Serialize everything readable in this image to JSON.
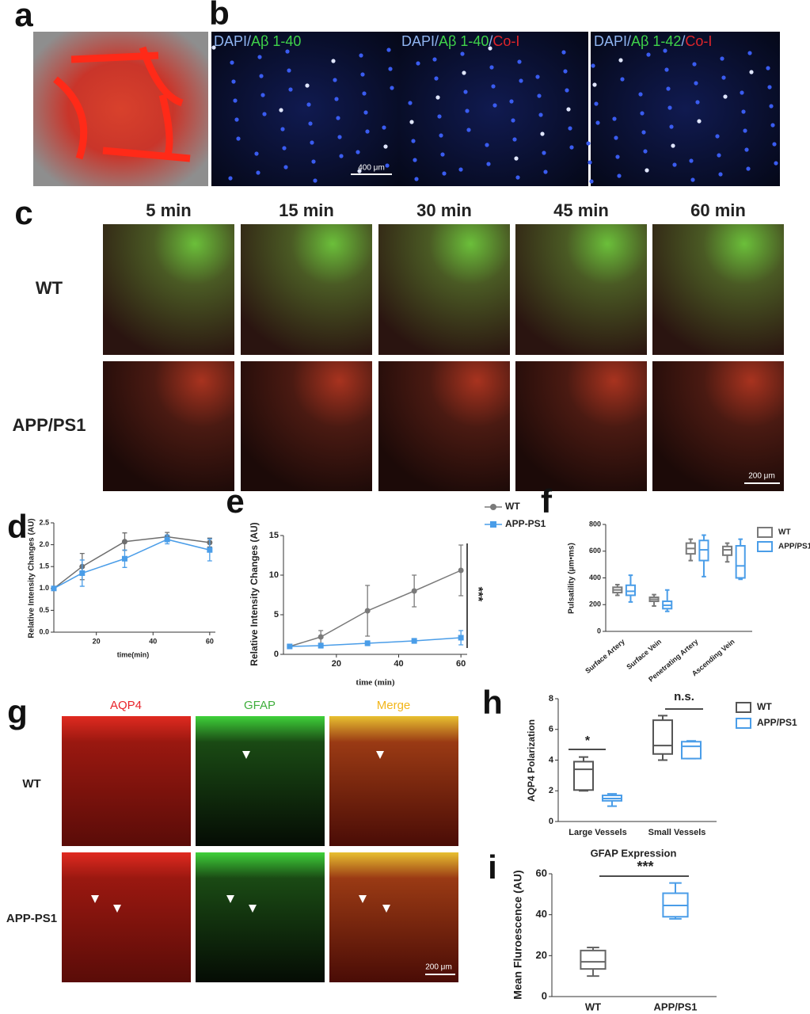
{
  "figure": {
    "panels": [
      "a",
      "b",
      "c",
      "d",
      "e",
      "f",
      "g",
      "h",
      "i"
    ],
    "b_labels": [
      [
        {
          "text": "DAPI/",
          "color": "#8fb4f0"
        },
        {
          "text": "Aβ 1-40",
          "color": "#3fd34a"
        }
      ],
      [
        {
          "text": "DAPI/",
          "color": "#8fb4f0"
        },
        {
          "text": "Aβ 1-40",
          "color": "#3fd34a"
        },
        {
          "text": "/",
          "color": "#8fb4f0"
        },
        {
          "text": "Co-I",
          "color": "#e0242b"
        }
      ],
      [
        {
          "text": "DAPI/",
          "color": "#8fb4f0"
        },
        {
          "text": "Aβ 1-42",
          "color": "#3fd34a"
        },
        {
          "text": "/",
          "color": "#8fb4f0"
        },
        {
          "text": "Co-I",
          "color": "#e0242b"
        }
      ]
    ],
    "b_scale": "400 μm",
    "c": {
      "times": [
        "5 min",
        "15 min",
        "30 min",
        "45 min",
        "60 min"
      ],
      "rows": [
        "WT",
        "APP/PS1"
      ],
      "scale": "200 μm"
    },
    "g": {
      "columns": [
        {
          "text": "AQP4",
          "color": "#e8232a"
        },
        {
          "text": "GFAP",
          "color": "#3fae3c"
        },
        {
          "text": "Merge",
          "color": "#f2b61b"
        }
      ],
      "rows": [
        "WT",
        "APP-PS1"
      ],
      "scale": "200 μm"
    }
  },
  "chart_data": [
    {
      "type": "line",
      "x_label": "time(min)",
      "y_label": "Relative Intensity Changes (AU)",
      "xlim": [
        5,
        62
      ],
      "xticks": [
        20,
        40,
        60
      ],
      "ylim": [
        0,
        2.5
      ],
      "yticks": [
        {
          "value": 0,
          "label": "0.0"
        },
        0.5,
        {
          "value": 1,
          "label": "1.0"
        },
        1.5,
        {
          "value": 2,
          "label": "2.0"
        },
        2.5
      ],
      "x": [
        5,
        15,
        30,
        45,
        60
      ],
      "series": [
        {
          "name": "WT",
          "color": "#6e6e6e",
          "marker": "circle",
          "values": [
            1,
            1.5,
            2.07,
            2.18,
            2.05
          ],
          "errors": [
            0,
            0.3,
            0.2,
            0.1,
            0.1
          ]
        },
        {
          "name": "APP/PS1",
          "color": "#4a9de8",
          "marker": "square",
          "values": [
            1,
            1.35,
            1.68,
            2.12,
            1.88
          ],
          "errors": [
            0,
            0.3,
            0.2,
            0.1,
            0.25
          ]
        }
      ]
    },
    {
      "type": "line",
      "x_label": "time (min)",
      "y_label": "Relative Intensity Changes (AU)",
      "xlim": [
        3,
        62
      ],
      "xticks": [
        20,
        40,
        60
      ],
      "ylim": [
        0,
        15
      ],
      "yticks": [
        0,
        5,
        10,
        15
      ],
      "x": [
        5,
        15,
        30,
        45,
        60
      ],
      "legend": "right",
      "annotations": [
        "***"
      ],
      "series": [
        {
          "name": "WT",
          "color": "#7a7a7a",
          "marker": "circle",
          "values": [
            1,
            2.2,
            5.5,
            8,
            10.6
          ],
          "errors": [
            0,
            0.8,
            3.2,
            2,
            3.2
          ]
        },
        {
          "name": "APP-PS1",
          "color": "#4a9de8",
          "marker": "square",
          "values": [
            1,
            1.1,
            1.4,
            1.7,
            2.1
          ],
          "errors": [
            0,
            0.3,
            0.3,
            0.3,
            0.9
          ]
        }
      ]
    },
    {
      "type": "box",
      "y_label": "Pulsatility (μm•ms)",
      "ylim": [
        0,
        800
      ],
      "yticks": [
        0,
        200,
        400,
        600,
        800
      ],
      "legend": "right",
      "categories": [
        "Surface Artery",
        "Surface Vein",
        "Penetrating Artery",
        "Ascending Vein"
      ],
      "series": [
        {
          "name": "WT",
          "color": "#7a7a7a",
          "min": [
            270,
            190,
            530,
            520
          ],
          "q1": [
            290,
            225,
            580,
            570
          ],
          "median": [
            310,
            240,
            620,
            610
          ],
          "q3": [
            330,
            255,
            660,
            635
          ],
          "max": [
            350,
            275,
            690,
            660
          ]
        },
        {
          "name": "APP/PS1",
          "color": "#4a9de8",
          "min": [
            220,
            150,
            410,
            390
          ],
          "q1": [
            270,
            170,
            530,
            400
          ],
          "median": [
            300,
            195,
            610,
            490
          ],
          "q3": [
            345,
            225,
            680,
            640
          ],
          "max": [
            420,
            310,
            720,
            690
          ]
        }
      ]
    },
    {
      "type": "box",
      "y_label": "AQP4 Polarization",
      "ylim": [
        0,
        8
      ],
      "yticks": [
        0,
        2,
        4,
        6,
        8
      ],
      "legend": "right",
      "categories": [
        "Large Vessels",
        "Small Vessels"
      ],
      "annotations": [
        "*",
        "n.s."
      ],
      "series": [
        {
          "name": "WT",
          "color": "#555555",
          "min": [
            2,
            4
          ],
          "q1": [
            2.05,
            4.4
          ],
          "median": [
            3.4,
            4.95
          ],
          "q3": [
            3.9,
            6.6
          ],
          "max": [
            4.2,
            6.9
          ]
        },
        {
          "name": "APP/PS1",
          "color": "#4a9de8",
          "min": [
            1,
            4.1
          ],
          "q1": [
            1.35,
            4.1
          ],
          "median": [
            1.5,
            4.9
          ],
          "q3": [
            1.7,
            5.2
          ],
          "max": [
            1.8,
            5.25
          ]
        }
      ]
    },
    {
      "type": "box",
      "title": "GFAP Expression",
      "y_label": "Mean Fluroescence (AU)",
      "ylim": [
        0,
        60
      ],
      "yticks": [
        0,
        20,
        40,
        60
      ],
      "categories": [
        "WT",
        "APP/PS1"
      ],
      "annotations": [
        "***"
      ],
      "series": [
        {
          "colors": [
            "#666666",
            "#4a9de8"
          ],
          "min": [
            10,
            38
          ],
          "q1": [
            13.5,
            39
          ],
          "median": [
            17,
            44.5
          ],
          "q3": [
            22.5,
            50.5
          ],
          "max": [
            24,
            55.5
          ]
        }
      ]
    }
  ]
}
